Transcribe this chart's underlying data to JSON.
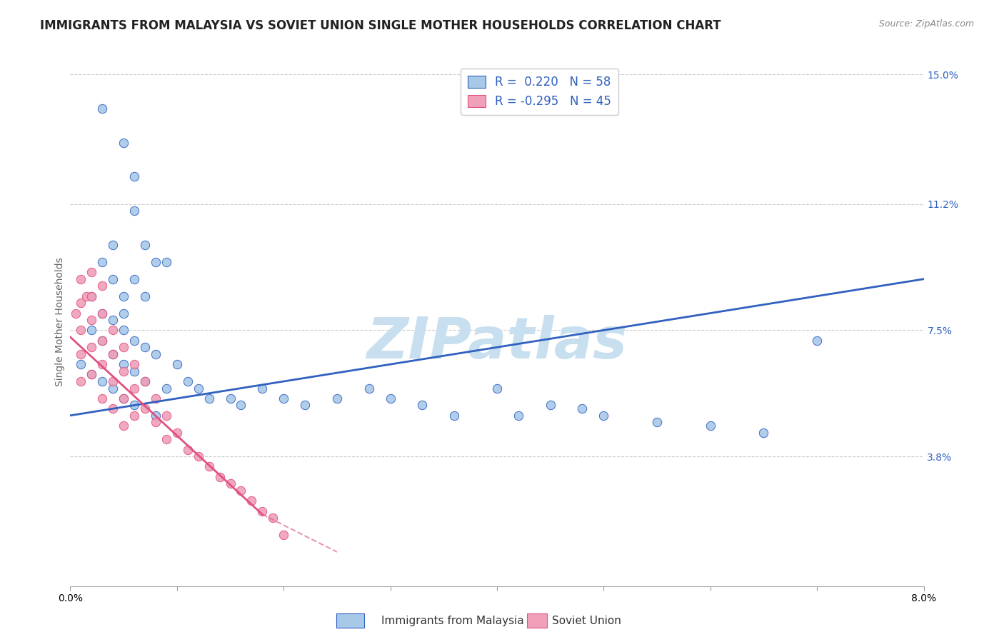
{
  "title": "IMMIGRANTS FROM MALAYSIA VS SOVIET UNION SINGLE MOTHER HOUSEHOLDS CORRELATION CHART",
  "source_text": "Source: ZipAtlas.com",
  "ylabel": "Single Mother Households",
  "legend_label1": "Immigrants from Malaysia",
  "legend_label2": "Soviet Union",
  "R1": 0.22,
  "N1": 58,
  "R2": -0.295,
  "N2": 45,
  "xlim": [
    0.0,
    0.08
  ],
  "ylim": [
    0.0,
    0.155
  ],
  "xticks": [
    0.0,
    0.01,
    0.02,
    0.03,
    0.04,
    0.05,
    0.06,
    0.07,
    0.08
  ],
  "xtick_labels": [
    "0.0%",
    "",
    "",
    "",
    "",
    "",
    "",
    "",
    "8.0%"
  ],
  "ytick_right": [
    0.038,
    0.075,
    0.112,
    0.15
  ],
  "ytick_right_labels": [
    "3.8%",
    "7.5%",
    "11.2%",
    "15.0%"
  ],
  "color_blue": "#a8c8e8",
  "color_pink": "#f0a0b8",
  "line_color_blue": "#3060c0",
  "line_color_pink": "#e05080",
  "background_color": "#ffffff",
  "watermark": "ZIPatlas",
  "watermark_color": "#c8dff0",
  "title_fontsize": 12,
  "axis_label_fontsize": 10,
  "tick_label_fontsize": 10,
  "blue_trend_x": [
    0.0,
    0.08
  ],
  "blue_trend_y": [
    0.05,
    0.09
  ],
  "pink_trend_x": [
    0.0,
    0.025
  ],
  "pink_trend_y": [
    0.073,
    0.01
  ],
  "blue_scatter_x": [
    0.003,
    0.005,
    0.006,
    0.006,
    0.007,
    0.008,
    0.009,
    0.003,
    0.004,
    0.004,
    0.005,
    0.005,
    0.006,
    0.007,
    0.002,
    0.003,
    0.004,
    0.005,
    0.006,
    0.007,
    0.008,
    0.002,
    0.003,
    0.004,
    0.005,
    0.006,
    0.007,
    0.009,
    0.001,
    0.002,
    0.003,
    0.004,
    0.005,
    0.006,
    0.008,
    0.01,
    0.011,
    0.012,
    0.013,
    0.015,
    0.016,
    0.018,
    0.02,
    0.022,
    0.025,
    0.028,
    0.03,
    0.033,
    0.036,
    0.04,
    0.042,
    0.045,
    0.048,
    0.05,
    0.055,
    0.06,
    0.065,
    0.07
  ],
  "blue_scatter_y": [
    0.14,
    0.13,
    0.11,
    0.12,
    0.1,
    0.095,
    0.095,
    0.095,
    0.1,
    0.09,
    0.085,
    0.08,
    0.09,
    0.085,
    0.085,
    0.08,
    0.078,
    0.075,
    0.072,
    0.07,
    0.068,
    0.075,
    0.072,
    0.068,
    0.065,
    0.063,
    0.06,
    0.058,
    0.065,
    0.062,
    0.06,
    0.058,
    0.055,
    0.053,
    0.05,
    0.065,
    0.06,
    0.058,
    0.055,
    0.055,
    0.053,
    0.058,
    0.055,
    0.053,
    0.055,
    0.058,
    0.055,
    0.053,
    0.05,
    0.058,
    0.05,
    0.053,
    0.052,
    0.05,
    0.048,
    0.047,
    0.045,
    0.072
  ],
  "pink_scatter_x": [
    0.0005,
    0.001,
    0.001,
    0.001,
    0.001,
    0.001,
    0.0015,
    0.002,
    0.002,
    0.002,
    0.002,
    0.002,
    0.003,
    0.003,
    0.003,
    0.003,
    0.003,
    0.004,
    0.004,
    0.004,
    0.004,
    0.005,
    0.005,
    0.005,
    0.005,
    0.006,
    0.006,
    0.006,
    0.007,
    0.007,
    0.008,
    0.008,
    0.009,
    0.009,
    0.01,
    0.011,
    0.012,
    0.013,
    0.014,
    0.015,
    0.016,
    0.017,
    0.018,
    0.019,
    0.02
  ],
  "pink_scatter_y": [
    0.08,
    0.09,
    0.083,
    0.075,
    0.068,
    0.06,
    0.085,
    0.092,
    0.085,
    0.078,
    0.07,
    0.062,
    0.088,
    0.08,
    0.072,
    0.065,
    0.055,
    0.075,
    0.068,
    0.06,
    0.052,
    0.07,
    0.063,
    0.055,
    0.047,
    0.065,
    0.058,
    0.05,
    0.06,
    0.052,
    0.055,
    0.048,
    0.05,
    0.043,
    0.045,
    0.04,
    0.038,
    0.035,
    0.032,
    0.03,
    0.028,
    0.025,
    0.022,
    0.02,
    0.015
  ]
}
